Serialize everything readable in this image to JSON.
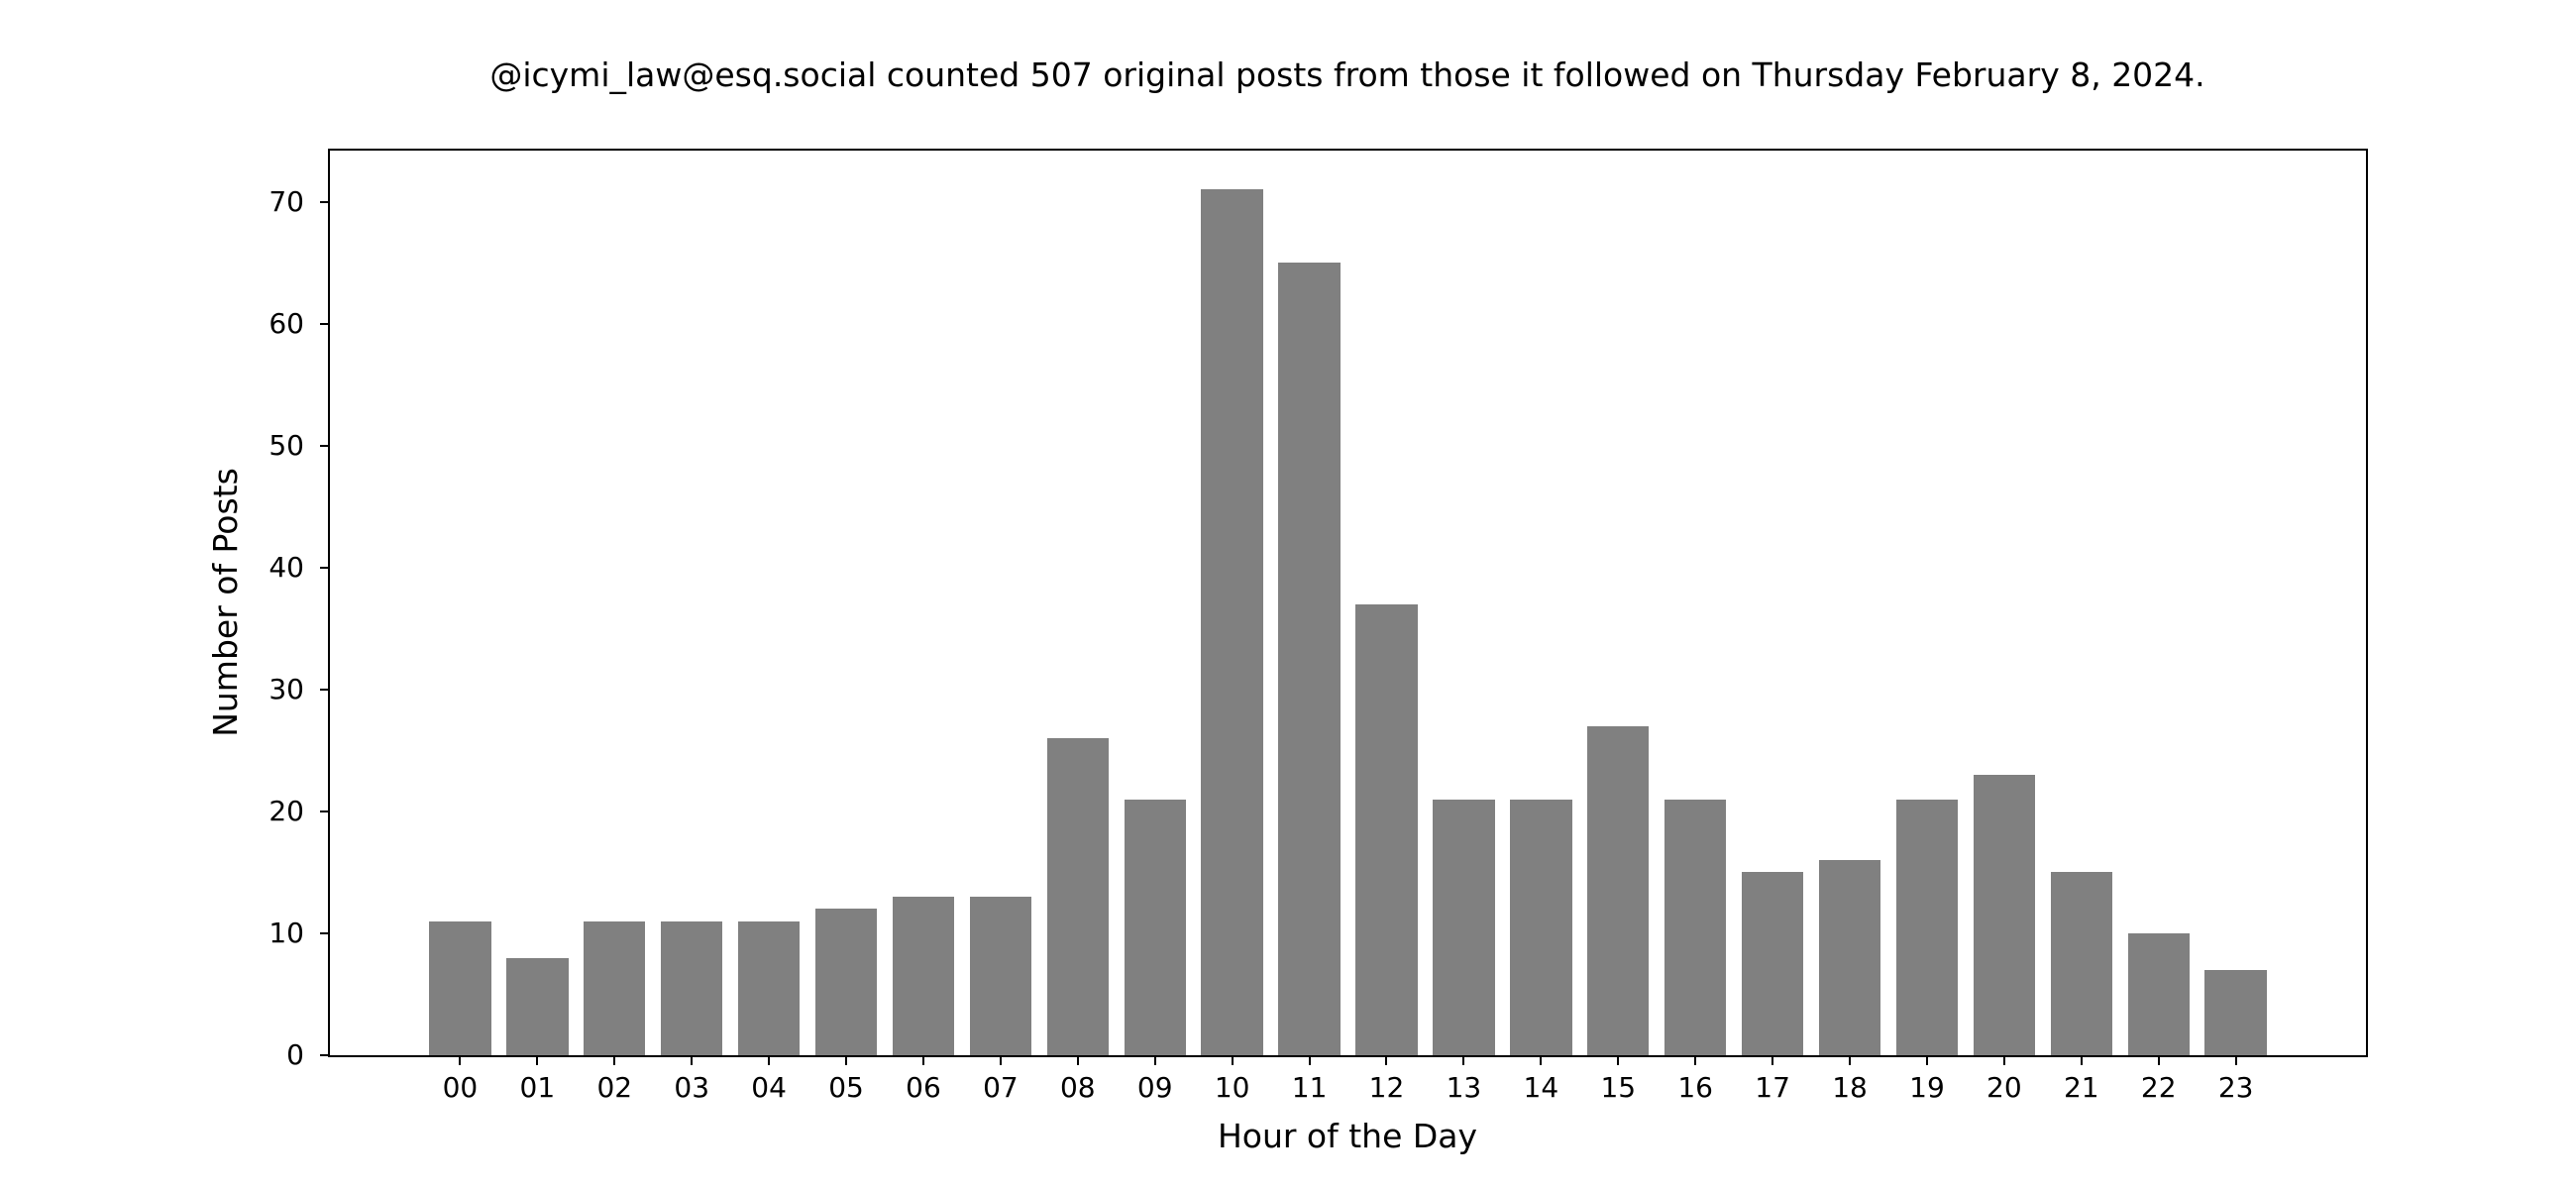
{
  "chart_data": {
    "type": "bar",
    "title": "@icymi_law@esq.social counted 507 original posts from those it followed on Thursday February 8, 2024.",
    "xlabel": "Hour of the Day",
    "ylabel": "Number of Posts",
    "categories": [
      "00",
      "01",
      "02",
      "03",
      "04",
      "05",
      "06",
      "07",
      "08",
      "09",
      "10",
      "11",
      "12",
      "13",
      "14",
      "15",
      "16",
      "17",
      "18",
      "19",
      "20",
      "21",
      "22",
      "23"
    ],
    "values": [
      11,
      8,
      11,
      11,
      11,
      12,
      13,
      13,
      26,
      21,
      71,
      65,
      37,
      21,
      21,
      27,
      21,
      15,
      16,
      21,
      23,
      15,
      10,
      7
    ],
    "total_posts_shown_in_title": 507,
    "yticks": [
      0,
      10,
      20,
      30,
      40,
      50,
      60,
      70
    ],
    "ylim": [
      0,
      74.2
    ],
    "bar_color": "#808080",
    "grid": "off",
    "legend": "none",
    "background_color": "#ffffff",
    "spine_color": "#000000"
  }
}
